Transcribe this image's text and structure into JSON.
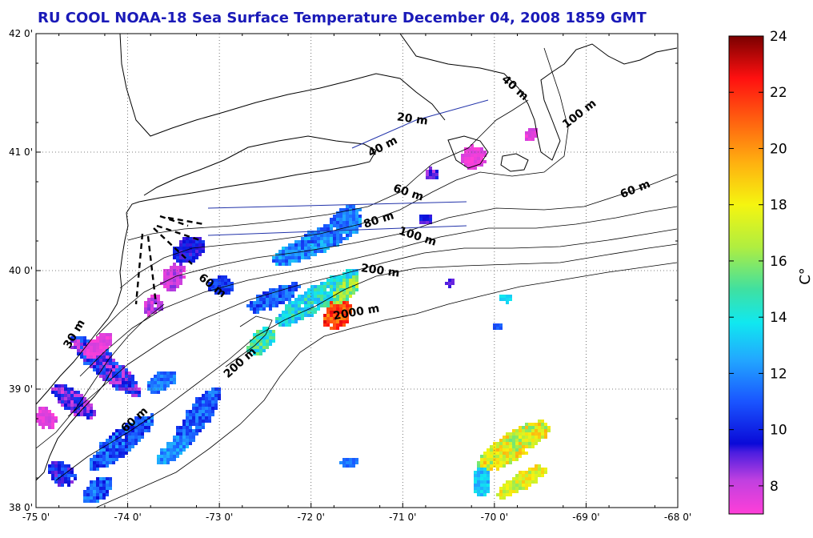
{
  "title": "RU COOL  NOAA-18 Sea Surface Temperature December 04, 2008 1859 GMT",
  "map": {
    "x_ticks": [
      "-75 0'",
      "-74 0'",
      "-73 0'",
      "-72 0'",
      "-71 0'",
      "-70 0'",
      "-69 0'",
      "-68 0'"
    ],
    "y_ticks": [
      "42 0'",
      "41 0'",
      "40 0'",
      "39 0'",
      "38 0'"
    ],
    "lon_range": [
      -75,
      -68
    ],
    "lat_range": [
      38,
      42
    ],
    "depth_labels": [
      {
        "text": "40 m",
        "lon": -69.8,
        "lat": 41.52,
        "rot": 42
      },
      {
        "text": "100 m",
        "lon": -69.05,
        "lat": 41.3,
        "rot": -38
      },
      {
        "text": "20 m",
        "lon": -70.9,
        "lat": 41.25,
        "rot": 8
      },
      {
        "text": "40 m",
        "lon": -71.2,
        "lat": 41.02,
        "rot": -28
      },
      {
        "text": "60 m",
        "lon": -70.95,
        "lat": 40.63,
        "rot": 18
      },
      {
        "text": "60 m",
        "lon": -68.45,
        "lat": 40.66,
        "rot": -22
      },
      {
        "text": "80 m",
        "lon": -71.25,
        "lat": 40.4,
        "rot": -18
      },
      {
        "text": "100 m",
        "lon": -70.85,
        "lat": 40.26,
        "rot": 18
      },
      {
        "text": "200 m",
        "lon": -71.25,
        "lat": 39.97,
        "rot": 8
      },
      {
        "text": "60 m",
        "lon": -73.1,
        "lat": 39.85,
        "rot": 38
      },
      {
        "text": "2000 m",
        "lon": -71.5,
        "lat": 39.62,
        "rot": -10
      },
      {
        "text": "200 m",
        "lon": -72.75,
        "lat": 39.2,
        "rot": -42
      },
      {
        "text": "30 m",
        "lon": -74.55,
        "lat": 39.45,
        "rot": -60
      },
      {
        "text": "60 m",
        "lon": -73.9,
        "lat": 38.72,
        "rot": -42
      }
    ]
  },
  "colorbar": {
    "min": 7,
    "max": 24,
    "ticks": [
      "24",
      "22",
      "20",
      "18",
      "16",
      "14",
      "12",
      "10",
      "8"
    ],
    "tick_values": [
      24,
      22,
      20,
      18,
      16,
      14,
      12,
      10,
      8
    ],
    "unit": "C°",
    "stops": [
      {
        "value": 7,
        "color": "#ff3fd8"
      },
      {
        "value": 8.2,
        "color": "#c040e0"
      },
      {
        "value": 9.2,
        "color": "#4a1de0"
      },
      {
        "value": 9.5,
        "color": "#0a0ad8"
      },
      {
        "value": 11,
        "color": "#1a55ff"
      },
      {
        "value": 12.5,
        "color": "#22a8ff"
      },
      {
        "value": 13.8,
        "color": "#10e8f0"
      },
      {
        "value": 15,
        "color": "#40e0a0"
      },
      {
        "value": 16.5,
        "color": "#b0ee40"
      },
      {
        "value": 18,
        "color": "#f5f510"
      },
      {
        "value": 19.5,
        "color": "#ffb010"
      },
      {
        "value": 21,
        "color": "#ff6010"
      },
      {
        "value": 22.5,
        "color": "#ff1010"
      },
      {
        "value": 24,
        "color": "#7a0000"
      }
    ]
  }
}
